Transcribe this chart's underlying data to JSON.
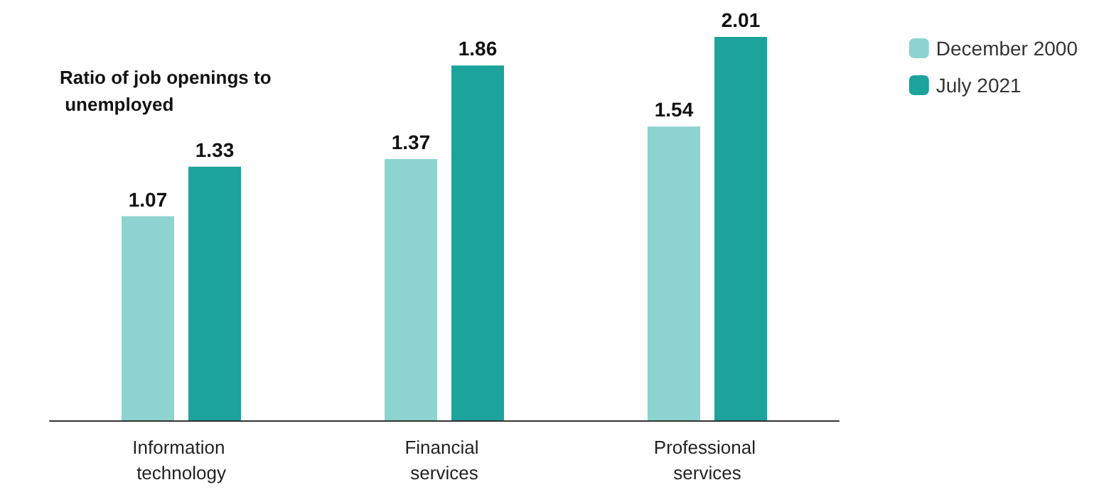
{
  "chart_data": {
    "type": "bar",
    "title": "Ratio of job openings to unemployed",
    "categories": [
      "Information technology",
      "Financial services",
      "Professional services"
    ],
    "series": [
      {
        "name": "December 2000",
        "color": "#8dd3cf",
        "values": [
          1.07,
          1.37,
          1.54
        ]
      },
      {
        "name": "July 2021",
        "color": "#1ba39c",
        "values": [
          1.33,
          1.86,
          2.01
        ]
      }
    ],
    "data_labels": true,
    "legend": "top right"
  }
}
